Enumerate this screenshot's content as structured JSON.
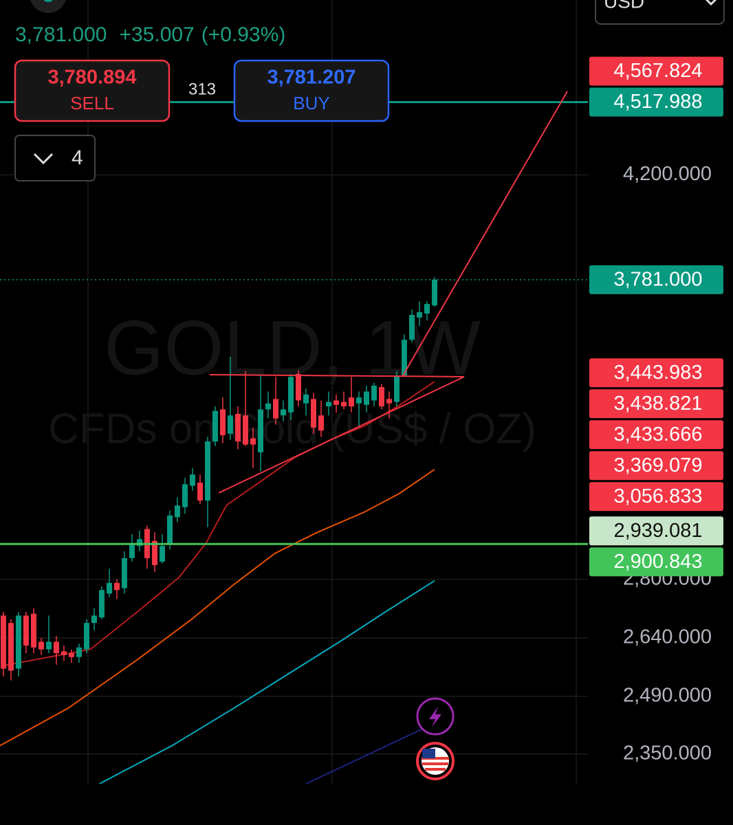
{
  "header": {
    "price": "3,781.000",
    "change": "+35.007",
    "change_pct": "(+0.93%)",
    "currency": "USD"
  },
  "order_panel": {
    "sell_price": "3,780.894",
    "sell_label": "SELL",
    "spread": "313",
    "buy_price": "3,781.207",
    "buy_label": "BUY",
    "quantity": "4"
  },
  "chart_data": {
    "type": "candlestick",
    "title": "GOLD, 1W",
    "subtitle": "CFDs on Gold (US$ / OZ)",
    "log_scale": true,
    "grid": true,
    "up_color": "#089981",
    "down_color": "#f23645",
    "xlim": [
      -0.45,
      77.27
    ],
    "ylim": [
      2281,
      5005
    ],
    "yticks": [
      {
        "value": 2350,
        "label": "2,350.000"
      },
      {
        "value": 2490,
        "label": "2,490.000"
      },
      {
        "value": 2640,
        "label": "2,640.000"
      },
      {
        "value": 2800,
        "label": "2,800.000"
      },
      {
        "value": 4200,
        "label": "4,200.000"
      }
    ],
    "candles": {
      "open": [
        2700,
        2680,
        2560,
        2700,
        2705,
        2630,
        2610,
        2630,
        2605,
        2600,
        2590,
        2610,
        2680,
        2695,
        2760,
        2790,
        2775,
        2860,
        2895,
        2945,
        2910,
        2850,
        2900,
        2980,
        3010,
        3075,
        3085,
        3030,
        3215,
        3320,
        3240,
        3305,
        3300,
        3225,
        3180,
        3320,
        3355,
        3300,
        3310,
        3440,
        3340,
        3355,
        3300,
        3330,
        3350,
        3345,
        3360,
        3340,
        3335,
        3350,
        3395,
        3355,
        3345,
        3435,
        3560,
        3640,
        3655,
        3685
      ],
      "high": [
        2710,
        2690,
        2710,
        2710,
        2720,
        2640,
        2700,
        2645,
        2620,
        2610,
        2625,
        2690,
        2720,
        2780,
        2830,
        2800,
        2880,
        2930,
        2940,
        2955,
        2935,
        2930,
        3000,
        3040,
        3100,
        3130,
        3110,
        3230,
        3330,
        3360,
        3500,
        3330,
        3450,
        3260,
        3435,
        3380,
        3430,
        3350,
        3440,
        3452,
        3390,
        3375,
        3350,
        3380,
        3370,
        3380,
        3430,
        3380,
        3400,
        3410,
        3405,
        3380,
        3450,
        3580,
        3670,
        3700,
        3700,
        3790
      ],
      "low": [
        2540,
        2530,
        2540,
        2600,
        2600,
        2595,
        2600,
        2570,
        2580,
        2575,
        2575,
        2600,
        2660,
        2690,
        2750,
        2745,
        2760,
        2850,
        2880,
        2830,
        2820,
        2845,
        2885,
        2965,
        2990,
        3060,
        3020,
        2950,
        3200,
        3210,
        3220,
        3190,
        3200,
        3130,
        3120,
        3290,
        3270,
        3280,
        3285,
        3330,
        3300,
        3240,
        3230,
        3300,
        3310,
        3320,
        3310,
        3260,
        3310,
        3330,
        3320,
        3290,
        3330,
        3430,
        3550,
        3610,
        3630,
        3680
      ],
      "close": [
        2560,
        2555,
        2700,
        2620,
        2615,
        2610,
        2630,
        2600,
        2595,
        2590,
        2615,
        2680,
        2700,
        2770,
        2790,
        2770,
        2860,
        2900,
        2915,
        2860,
        2840,
        2895,
        2985,
        3015,
        3080,
        3110,
        3030,
        3215,
        3315,
        3235,
        3300,
        3215,
        3205,
        3205,
        3320,
        3340,
        3290,
        3320,
        3430,
        3350,
        3370,
        3260,
        3250,
        3345,
        3335,
        3330,
        3330,
        3360,
        3380,
        3400,
        3330,
        3340,
        3435,
        3560,
        3650,
        3660,
        3690,
        3781
      ]
    },
    "lines": [
      {
        "color": "#b71c1c",
        "x": [
          0,
          11.5,
          17.7,
          23.2,
          26.8,
          29.5,
          34.1,
          38.6,
          43.2,
          47.7,
          52.3,
          57
        ],
        "values": [
          2568,
          2610,
          2710,
          2805,
          2904,
          3016,
          3090,
          3165,
          3220,
          3265,
          3333,
          3414
        ]
      },
      {
        "color": "#e65100",
        "x": [
          -0.45,
          8.6,
          17.7,
          25,
          30.5,
          35.9,
          41.4,
          47.7,
          52.3,
          57
        ],
        "values": [
          2370,
          2461,
          2583,
          2692,
          2786,
          2874,
          2934,
          2995,
          3051,
          3126
        ]
      },
      {
        "color": "#00acc1",
        "x": [
          12.7,
          22.3,
          30.5,
          37.7,
          45,
          50.5,
          57
        ],
        "values": [
          2281,
          2370,
          2461,
          2547,
          2637,
          2710,
          2796
        ]
      }
    ],
    "last_price": {
      "value": 3781,
      "label": "3,781.000",
      "color": "#089981"
    },
    "price_lines": [
      {
        "value": 4567.824,
        "label": "4,567.824",
        "color": "#f23645"
      },
      {
        "value": 4517.988,
        "label": "4,517.988",
        "color": "#089981",
        "line": true
      },
      {
        "value": 3443.983,
        "label": "3,443.983",
        "color": "#f23645"
      },
      {
        "value": 3438.821,
        "label": "3,438.821",
        "color": "#f23645"
      },
      {
        "value": 3433.666,
        "label": "3,433.666",
        "color": "#f23645"
      },
      {
        "value": 3369.079,
        "label": "3,369.079",
        "color": "#f23645"
      },
      {
        "value": 3056.833,
        "label": "3,056.833",
        "color": "#f23645"
      },
      {
        "value": 2939.081,
        "label": "2,939.081",
        "color": "#c8e6c9"
      },
      {
        "value": 2900.843,
        "label": "2,900.843",
        "color": "#43c45a",
        "line": true
      }
    ]
  }
}
